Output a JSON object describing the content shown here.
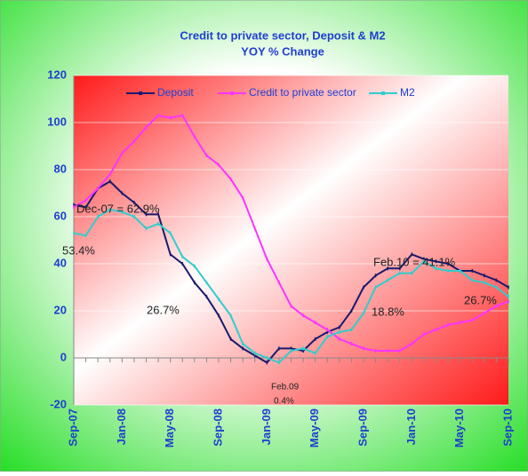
{
  "chart_data": {
    "type": "line",
    "title": "Credit to private sector, Deposit & M2",
    "subtitle": "YOY % Change",
    "categories": [
      "Sep-07",
      null,
      null,
      null,
      "Jan-08",
      null,
      null,
      null,
      "May-08",
      null,
      null,
      null,
      "Sep-08",
      null,
      null,
      null,
      "Jan-09",
      null,
      null,
      null,
      "May-09",
      null,
      null,
      null,
      "Sep-09",
      null,
      null,
      null,
      "Jan-10",
      null,
      null,
      null,
      "May-10",
      null,
      null,
      null,
      "Sep-10"
    ],
    "series": [
      {
        "name": "Deposit",
        "color": "#1a1a6e",
        "values": [
          65,
          64,
          72,
          75,
          70,
          66,
          61,
          61,
          44,
          40,
          32,
          26,
          18,
          8,
          4,
          1,
          -2,
          4,
          4,
          3,
          8,
          11,
          13,
          20,
          30,
          35,
          38,
          38,
          44,
          42,
          41,
          40,
          37,
          37,
          35,
          33,
          30
        ]
      },
      {
        "name": "Credit to private sector",
        "color": "#ff33ff",
        "values": [
          64,
          67,
          72,
          78,
          87,
          92,
          98,
          103,
          102,
          103,
          94,
          86,
          82,
          76,
          68,
          55,
          42,
          32,
          22,
          18,
          15,
          12,
          8,
          6,
          4,
          3,
          3,
          3,
          6,
          10,
          12,
          14,
          15,
          16,
          19,
          22,
          24
        ]
      },
      {
        "name": "M2",
        "color": "#33cccc",
        "values": [
          53,
          52,
          60,
          63,
          62,
          60,
          55,
          57,
          53,
          43,
          39,
          32,
          25,
          18,
          6,
          2,
          0,
          -2,
          3,
          4,
          2,
          9,
          11,
          12,
          19,
          30,
          33,
          36,
          36,
          41,
          38,
          37,
          37,
          33,
          32,
          30,
          26
        ]
      }
    ],
    "ylim": [
      -20,
      120
    ],
    "yticks": [
      -20,
      0,
      20,
      40,
      60,
      80,
      100,
      120
    ],
    "grid": true,
    "annotations": [
      "Dec-07 = 62.9%",
      "53.4%",
      "26.7%",
      "Feb.09",
      "0.4%",
      "18.8%",
      "Feb.10 = 41.1%",
      "26.7%"
    ]
  }
}
